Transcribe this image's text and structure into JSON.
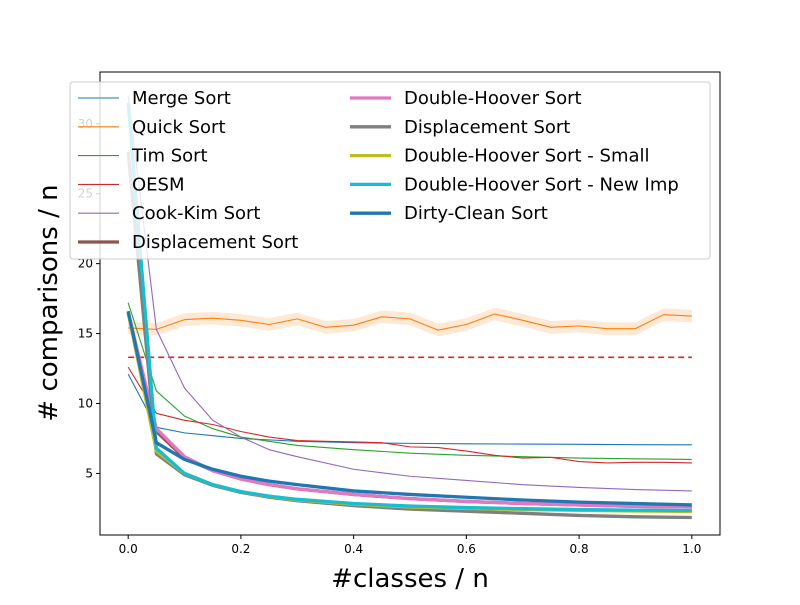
{
  "chart_data": {
    "type": "line",
    "title": "",
    "xlabel": "#classes / n",
    "ylabel": "# comparisons / n",
    "xlim": [
      -0.05,
      1.05
    ],
    "ylim": [
      0.6,
      33.7
    ],
    "xticks": [
      "0.0",
      "0.2",
      "0.4",
      "0.6",
      "0.8",
      "1.0"
    ],
    "yticks": [
      "5",
      "10",
      "15",
      "20",
      "25",
      "30"
    ],
    "grid": false,
    "legend_placement": "top",
    "reference_line": {
      "y": 13.3,
      "color": "#d62728",
      "style": "dashed"
    },
    "series": [
      {
        "name": "Merge Sort",
        "color": "#1f77b4",
        "width": 1,
        "x": [
          0,
          0.05,
          0.1,
          0.15,
          0.2,
          0.25,
          0.3,
          0.35,
          0.4,
          0.5,
          0.6,
          0.7,
          0.8,
          0.9,
          1.0
        ],
        "y": [
          12.1,
          8.3,
          7.9,
          7.7,
          7.5,
          7.4,
          7.3,
          7.25,
          7.2,
          7.15,
          7.12,
          7.1,
          7.08,
          7.06,
          7.05
        ]
      },
      {
        "name": "Quick Sort",
        "color": "#ff7f0e",
        "width": 1,
        "x": [
          0,
          0.05,
          0.1,
          0.15,
          0.2,
          0.25,
          0.3,
          0.35,
          0.4,
          0.45,
          0.5,
          0.55,
          0.6,
          0.65,
          0.7,
          0.75,
          0.8,
          0.85,
          0.9,
          0.95,
          1.0
        ],
        "y": [
          15.4,
          15.3,
          16.0,
          16.1,
          15.95,
          15.65,
          16.05,
          15.45,
          15.6,
          16.2,
          16.05,
          15.25,
          15.65,
          16.4,
          15.95,
          15.45,
          15.55,
          15.35,
          15.35,
          16.35,
          16.25
        ],
        "band": 0.45
      },
      {
        "name": "Tim Sort",
        "color": "#2ca02c",
        "width": 1,
        "x": [
          0,
          0.05,
          0.1,
          0.15,
          0.2,
          0.25,
          0.3,
          0.4,
          0.5,
          0.6,
          0.7,
          0.8,
          0.9,
          1.0
        ],
        "y": [
          17.2,
          10.9,
          9.1,
          8.2,
          7.6,
          7.3,
          7.0,
          6.7,
          6.45,
          6.3,
          6.2,
          6.1,
          6.05,
          6.0
        ]
      },
      {
        "name": "OESM",
        "color": "#d62728",
        "width": 1,
        "x": [
          0,
          0.05,
          0.1,
          0.15,
          0.2,
          0.25,
          0.3,
          0.35,
          0.4,
          0.45,
          0.5,
          0.55,
          0.6,
          0.65,
          0.7,
          0.75,
          0.8,
          0.85,
          0.9,
          0.95,
          1.0
        ],
        "y": [
          12.6,
          9.3,
          8.8,
          8.5,
          8.0,
          7.6,
          7.35,
          7.3,
          7.25,
          7.2,
          6.9,
          6.85,
          6.6,
          6.3,
          6.1,
          6.15,
          5.85,
          5.75,
          5.8,
          5.8,
          5.75
        ]
      },
      {
        "name": "Cook-Kim Sort",
        "color": "#9467bd",
        "width": 1,
        "x": [
          0,
          0.05,
          0.1,
          0.15,
          0.2,
          0.25,
          0.3,
          0.4,
          0.5,
          0.6,
          0.7,
          0.8,
          0.9,
          1.0
        ],
        "y": [
          32.0,
          15.3,
          11.1,
          8.8,
          7.6,
          6.7,
          6.2,
          5.3,
          4.8,
          4.5,
          4.2,
          4.0,
          3.85,
          3.75
        ]
      },
      {
        "name": "Displacement Sort",
        "color": "#8c564b",
        "width": 3,
        "x": [
          0,
          0.05,
          0.1,
          0.15,
          0.2,
          0.25,
          0.3,
          0.4,
          0.5,
          0.6,
          0.7,
          0.8,
          0.9,
          1.0
        ],
        "y": [
          16.5,
          8.0,
          6.1,
          5.2,
          4.6,
          4.2,
          3.9,
          3.5,
          3.2,
          3.0,
          2.85,
          2.75,
          2.65,
          2.6
        ]
      },
      {
        "name": "Double-Hoover Sort",
        "color": "#e377c2",
        "width": 3,
        "x": [
          0,
          0.05,
          0.1,
          0.15,
          0.2,
          0.25,
          0.3,
          0.4,
          0.5,
          0.6,
          0.7,
          0.8,
          0.9,
          1.0
        ],
        "y": [
          16.5,
          8.2,
          6.2,
          5.2,
          4.6,
          4.2,
          3.9,
          3.5,
          3.2,
          3.0,
          2.85,
          2.75,
          2.65,
          2.6
        ]
      },
      {
        "name": "Displacement Sort",
        "color": "#7f7f7f",
        "width": 3,
        "x": [
          0,
          0.05,
          0.1,
          0.15,
          0.2,
          0.25,
          0.3,
          0.4,
          0.5,
          0.6,
          0.7,
          0.8,
          0.9,
          1.0
        ],
        "y": [
          28.0,
          6.4,
          4.9,
          4.15,
          3.65,
          3.3,
          3.05,
          2.7,
          2.45,
          2.3,
          2.15,
          2.0,
          1.9,
          1.85
        ]
      },
      {
        "name": "Double-Hoover Sort - Small",
        "color": "#bcbd22",
        "width": 3,
        "x": [
          0,
          0.05,
          0.1,
          0.15,
          0.2,
          0.25,
          0.3,
          0.4,
          0.5,
          0.6,
          0.7,
          0.8,
          0.9,
          1.0
        ],
        "y": [
          16.5,
          6.6,
          5.0,
          4.2,
          3.7,
          3.35,
          3.1,
          2.8,
          2.6,
          2.5,
          2.42,
          2.36,
          2.32,
          2.28
        ]
      },
      {
        "name": "Double-Hoover Sort - New Imp",
        "color": "#17becf",
        "width": 3,
        "x": [
          0,
          0.05,
          0.1,
          0.15,
          0.2,
          0.25,
          0.3,
          0.4,
          0.5,
          0.6,
          0.7,
          0.8,
          0.9,
          1.0
        ],
        "y": [
          31.5,
          6.8,
          5.0,
          4.2,
          3.7,
          3.38,
          3.15,
          2.85,
          2.67,
          2.56,
          2.48,
          2.42,
          2.38,
          2.35
        ]
      },
      {
        "name": "Dirty-Clean Sort",
        "color": "#1f77b4",
        "width": 3,
        "x": [
          0,
          0.05,
          0.1,
          0.15,
          0.2,
          0.25,
          0.3,
          0.4,
          0.5,
          0.6,
          0.7,
          0.8,
          0.9,
          1.0
        ],
        "y": [
          16.6,
          7.2,
          6.0,
          5.3,
          4.8,
          4.45,
          4.2,
          3.75,
          3.5,
          3.3,
          3.1,
          2.95,
          2.85,
          2.75
        ]
      }
    ]
  }
}
